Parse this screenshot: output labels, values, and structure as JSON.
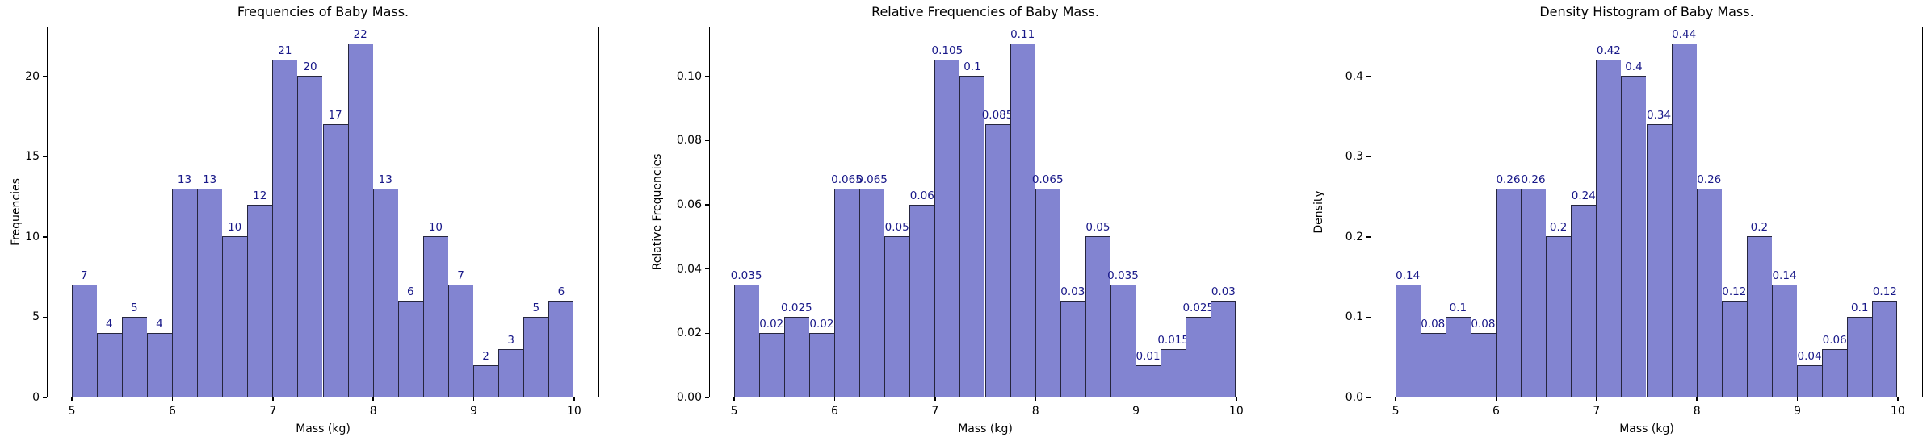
{
  "figure": {
    "background": "#ffffff"
  },
  "style": {
    "bar_fill": "#8284d1",
    "bar_edge": "#26263e",
    "value_label_color": "#191989",
    "axis_color": "#000000"
  },
  "chart_data": [
    {
      "type": "bar",
      "kind": "histogram",
      "title": "Frequencies of Baby Mass.",
      "xlabel": "Mass (kg)",
      "ylabel": "Frequencies",
      "bin_start": 5,
      "bin_width": 0.25,
      "bin_edges": [
        5,
        5.25,
        5.5,
        5.75,
        6,
        6.25,
        6.5,
        6.75,
        7,
        7.25,
        7.5,
        7.75,
        8,
        8.25,
        8.5,
        8.75,
        9,
        9.25,
        9.5,
        9.75,
        10
      ],
      "values": [
        7,
        4,
        5,
        4,
        13,
        13,
        10,
        12,
        21,
        20,
        17,
        22,
        13,
        6,
        10,
        7,
        2,
        3,
        5,
        6
      ],
      "bar_labels": [
        "7",
        "4",
        "5",
        "4",
        "13",
        "13",
        "10",
        "12",
        "21",
        "20",
        "17",
        "22",
        "13",
        "6",
        "10",
        "7",
        "2",
        "3",
        "5",
        "6"
      ],
      "xlim": [
        4.75,
        10.25
      ],
      "ylim": [
        0,
        23.1
      ],
      "xticks": [
        5,
        6,
        7,
        8,
        9,
        10
      ],
      "xtick_labels": [
        "5",
        "6",
        "7",
        "8",
        "9",
        "10"
      ],
      "yticks": [
        0,
        5,
        10,
        15,
        20
      ],
      "ytick_labels": [
        "0",
        "5",
        "10",
        "15",
        "20"
      ],
      "grid": false,
      "legend": null
    },
    {
      "type": "bar",
      "kind": "histogram",
      "title": "Relative Frequencies of Baby Mass.",
      "xlabel": "Mass (kg)",
      "ylabel": "Relative Frequencies",
      "bin_start": 5,
      "bin_width": 0.25,
      "bin_edges": [
        5,
        5.25,
        5.5,
        5.75,
        6,
        6.25,
        6.5,
        6.75,
        7,
        7.25,
        7.5,
        7.75,
        8,
        8.25,
        8.5,
        8.75,
        9,
        9.25,
        9.5,
        9.75,
        10
      ],
      "values": [
        0.035,
        0.02,
        0.025,
        0.02,
        0.065,
        0.065,
        0.05,
        0.06,
        0.105,
        0.1,
        0.085,
        0.11,
        0.065,
        0.03,
        0.05,
        0.035,
        0.01,
        0.015,
        0.025,
        0.03
      ],
      "bar_labels": [
        "0.035",
        "0.02",
        "0.025",
        "0.02",
        "0.065",
        "0.065",
        "0.05",
        "0.06",
        "0.105",
        "0.1",
        "0.085",
        "0.11",
        "0.065",
        "0.03",
        "0.05",
        "0.035",
        "0.01",
        "0.015",
        "0.025",
        "0.03"
      ],
      "xlim": [
        4.75,
        10.25
      ],
      "ylim": [
        0,
        0.1155
      ],
      "xticks": [
        5,
        6,
        7,
        8,
        9,
        10
      ],
      "xtick_labels": [
        "5",
        "6",
        "7",
        "8",
        "9",
        "10"
      ],
      "yticks": [
        0,
        0.02,
        0.04,
        0.06,
        0.08,
        0.1
      ],
      "ytick_labels": [
        "0.00",
        "0.02",
        "0.04",
        "0.06",
        "0.08",
        "0.10"
      ],
      "grid": false,
      "legend": null
    },
    {
      "type": "bar",
      "kind": "histogram",
      "title": "Density Histogram of Baby Mass.",
      "xlabel": "Mass (kg)",
      "ylabel": "Density",
      "bin_start": 5,
      "bin_width": 0.25,
      "bin_edges": [
        5,
        5.25,
        5.5,
        5.75,
        6,
        6.25,
        6.5,
        6.75,
        7,
        7.25,
        7.5,
        7.75,
        8,
        8.25,
        8.5,
        8.75,
        9,
        9.25,
        9.5,
        9.75,
        10
      ],
      "values": [
        0.14,
        0.08,
        0.1,
        0.08,
        0.26,
        0.26,
        0.2,
        0.24,
        0.42,
        0.4,
        0.34,
        0.44,
        0.26,
        0.12,
        0.2,
        0.14,
        0.04,
        0.06,
        0.1,
        0.12
      ],
      "bar_labels": [
        "0.14",
        "0.08",
        "0.1",
        "0.08",
        "0.26",
        "0.26",
        "0.2",
        "0.24",
        "0.42",
        "0.4",
        "0.34",
        "0.44",
        "0.26",
        "0.12",
        "0.2",
        "0.14",
        "0.04",
        "0.06",
        "0.1",
        "0.12"
      ],
      "xlim": [
        4.75,
        10.25
      ],
      "ylim": [
        0,
        0.462
      ],
      "xticks": [
        5,
        6,
        7,
        8,
        9,
        10
      ],
      "xtick_labels": [
        "5",
        "6",
        "7",
        "8",
        "9",
        "10"
      ],
      "yticks": [
        0,
        0.1,
        0.2,
        0.3,
        0.4
      ],
      "ytick_labels": [
        "0.0",
        "0.1",
        "0.2",
        "0.3",
        "0.4"
      ],
      "grid": false,
      "legend": null
    }
  ]
}
